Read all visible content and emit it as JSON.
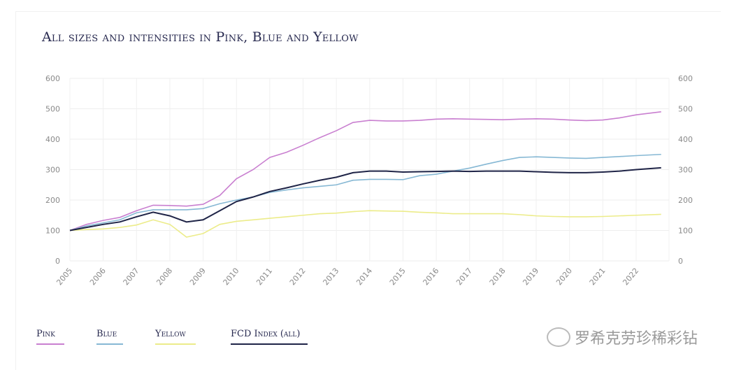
{
  "chart_data": {
    "type": "line",
    "title": "All sizes and intensities in Pink, Blue and Yellow",
    "x_ticks": [
      "2005",
      "2006",
      "2007",
      "2008",
      "2009",
      "2010",
      "2011",
      "2012",
      "2013",
      "2014",
      "2015",
      "2016",
      "2017",
      "2018",
      "2019",
      "2020",
      "2021",
      "2022"
    ],
    "y_ticks": [
      0,
      100,
      200,
      300,
      400,
      500,
      600
    ],
    "ylim": [
      0,
      600
    ],
    "xlim": [
      2005,
      2022.75
    ],
    "grid": true,
    "legend_placement": "bottom-left",
    "x": [
      2005,
      2005.5,
      2006,
      2006.5,
      2007,
      2007.5,
      2008,
      2008.5,
      2009,
      2009.5,
      2010,
      2010.5,
      2011,
      2011.5,
      2012,
      2012.5,
      2013,
      2013.5,
      2014,
      2014.5,
      2015,
      2015.5,
      2016,
      2016.5,
      2017,
      2017.5,
      2018,
      2018.5,
      2019,
      2019.5,
      2020,
      2020.5,
      2021,
      2021.5,
      2022,
      2022.75
    ],
    "series": [
      {
        "name": "Pink",
        "color": "#c97fd0",
        "values": [
          100,
          120,
          133,
          143,
          165,
          183,
          182,
          180,
          186,
          215,
          270,
          300,
          340,
          357,
          380,
          405,
          428,
          455,
          462,
          460,
          460,
          462,
          466,
          467,
          466,
          465,
          464,
          466,
          467,
          466,
          463,
          461,
          463,
          470,
          480,
          490
        ]
      },
      {
        "name": "Blue",
        "color": "#86b8d4",
        "values": [
          100,
          115,
          125,
          135,
          158,
          168,
          168,
          168,
          172,
          188,
          200,
          210,
          225,
          233,
          240,
          245,
          250,
          265,
          268,
          268,
          267,
          280,
          285,
          295,
          305,
          318,
          330,
          340,
          342,
          340,
          338,
          337,
          340,
          343,
          346,
          350
        ]
      },
      {
        "name": "Yellow",
        "color": "#ecec8a",
        "values": [
          100,
          103,
          105,
          110,
          118,
          135,
          120,
          78,
          90,
          120,
          130,
          135,
          140,
          145,
          150,
          155,
          157,
          162,
          165,
          164,
          163,
          160,
          158,
          155,
          155,
          155,
          155,
          152,
          148,
          146,
          145,
          145,
          146,
          148,
          150,
          153
        ]
      },
      {
        "name": "FCD Index (all)",
        "color": "#1f2447",
        "values": [
          100,
          110,
          120,
          128,
          145,
          160,
          148,
          128,
          135,
          165,
          195,
          210,
          228,
          240,
          253,
          265,
          275,
          290,
          295,
          295,
          292,
          293,
          294,
          295,
          294,
          295,
          295,
          295,
          293,
          291,
          290,
          290,
          292,
          295,
          300,
          306
        ]
      }
    ]
  },
  "watermark": "罗希克劳珍稀彩钻"
}
